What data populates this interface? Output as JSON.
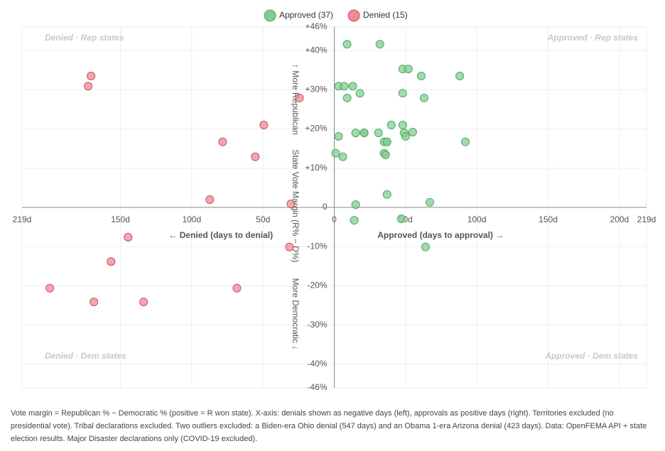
{
  "chart_data": {
    "type": "scatter",
    "legend": "top",
    "grid": true,
    "x_label_left": "← Denied (days to denial)",
    "x_label_right": "Approved (days to approval) →",
    "y_label": [
      "↑ More Republican",
      "State Vote Margin (R% − D%)",
      "More Democratic ↓"
    ],
    "quadrant_labels": [
      "Denied · Rep states",
      "Approved · Rep states",
      "Denied · Dem states",
      "Approved · Dem states"
    ],
    "xlim": [
      -219,
      219
    ],
    "ylim": [
      -46,
      46
    ],
    "xticks": [
      {
        "value": -219,
        "label": "219d"
      },
      {
        "value": -150,
        "label": "150d"
      },
      {
        "value": -100,
        "label": "100d"
      },
      {
        "value": -50,
        "label": "50d"
      },
      0,
      {
        "value": 50,
        "label": "50d"
      },
      {
        "value": 100,
        "label": "100d"
      },
      {
        "value": 150,
        "label": "150d"
      },
      {
        "value": 200,
        "label": "200d"
      },
      {
        "value": 219,
        "label": "219d"
      }
    ],
    "yticks": [
      {
        "value": 46,
        "label": "+46%"
      },
      {
        "value": 40,
        "label": "+40%"
      },
      {
        "value": 30,
        "label": "+30%"
      },
      {
        "value": 20,
        "label": "+20%"
      },
      {
        "value": 10,
        "label": "+10%"
      },
      0,
      {
        "value": -10,
        "label": "-10%"
      },
      {
        "value": -20,
        "label": "-20%"
      },
      {
        "value": -30,
        "label": "-30%"
      },
      {
        "value": -40,
        "label": "-40%"
      },
      {
        "value": -46,
        "label": "-46%"
      }
    ],
    "series": [
      {
        "name": "Approved (37)",
        "color": "#81cd8f",
        "stroke": "#52a862",
        "x": [
          9,
          32,
          48,
          52,
          61,
          88,
          3,
          7,
          13,
          18,
          48,
          9,
          63,
          40,
          48,
          3,
          15,
          21,
          21,
          31,
          49,
          50,
          55,
          35,
          37,
          37,
          92,
          1,
          6,
          35,
          36,
          37,
          15,
          67,
          14,
          47,
          64
        ],
        "values": [
          41.6,
          41.6,
          35.3,
          35.3,
          33.5,
          33.5,
          30.9,
          30.9,
          30.9,
          29.1,
          29.1,
          27.9,
          27.9,
          21.0,
          21.0,
          18.1,
          19.0,
          19.0,
          19.0,
          19.0,
          19.0,
          18.1,
          19.2,
          16.7,
          16.7,
          16.7,
          16.7,
          13.8,
          12.9,
          13.8,
          13.4,
          3.3,
          0.7,
          1.3,
          -3.3,
          -2.9,
          -10.1
        ]
      },
      {
        "name": "Denied (15)",
        "color": "#ee8a96",
        "stroke": "#c9505f",
        "x": [
          -170.6,
          -172.6,
          -24.4,
          -49.4,
          -78.3,
          -55.4,
          -87.3,
          -30.4,
          -144.6,
          -31.4,
          -156.6,
          -199.5,
          -68.3,
          -168.6,
          -133.7
        ],
        "values": [
          33.5,
          30.9,
          27.9,
          21.0,
          16.7,
          12.9,
          2.0,
          0.9,
          -7.6,
          -10.1,
          -13.8,
          -20.6,
          -20.6,
          -24.1,
          -24.1
        ]
      }
    ],
    "note": "Vote margin = Republican % − Democratic % (positive = R won state). X-axis: denials shown as negative days (left), approvals as positive days (right). Territories excluded (no presidential vote). Tribal declarations excluded. Two outliers excluded: a Biden-era Ohio denial (547 days) and an Obama 1-era Arizona denial (423 days). Data: OpenFEMA API + state election results. Major Disaster declarations only (COVID-19 excluded)."
  }
}
